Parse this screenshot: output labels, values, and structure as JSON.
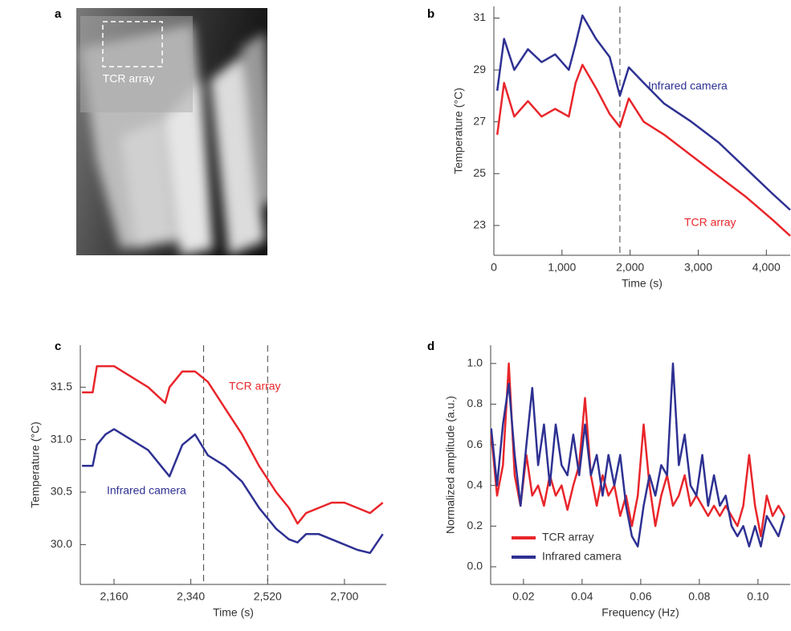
{
  "chart_data": [
    {
      "type": "image",
      "panel": "a",
      "annotation": "TCR array"
    },
    {
      "type": "line",
      "panel": "b",
      "xlabel": "Time (s)",
      "ylabel": "Temperature (°C)",
      "xlim": [
        0,
        4350
      ],
      "ylim": [
        21.85,
        31.45
      ],
      "xticks": [
        0,
        {
          "value": 1000,
          "label": "1,000"
        },
        {
          "value": 2000,
          "label": "2,000"
        },
        {
          "value": 3000,
          "label": "3,000"
        },
        {
          "value": 4000,
          "label": "4,000"
        }
      ],
      "yticks": [
        23,
        25,
        27,
        29,
        31
      ],
      "vlines": [
        1850
      ],
      "x": [
        50,
        150,
        300,
        500,
        700,
        900,
        1100,
        1200,
        1300,
        1500,
        1700,
        1850,
        1980,
        2200,
        2500,
        2900,
        3300,
        3700,
        4100,
        4350
      ],
      "series": [
        {
          "name": "Infrared camera",
          "color": "#2e3192",
          "values": [
            28.2,
            30.2,
            29,
            29.8,
            29.3,
            29.6,
            29,
            30,
            31.1,
            30.2,
            29.5,
            28,
            29.1,
            28.5,
            27.7,
            27,
            26.2,
            25.2,
            24.2,
            23.6
          ]
        },
        {
          "name": "TCR array",
          "color": "#e8262b",
          "values": [
            26.5,
            28.5,
            27.2,
            27.8,
            27.2,
            27.5,
            27.2,
            28.5,
            29.2,
            28.3,
            27.3,
            26.8,
            27.9,
            27,
            26.5,
            25.7,
            24.9,
            24.1,
            23.2,
            22.6
          ]
        }
      ]
    },
    {
      "type": "line",
      "panel": "c",
      "xlabel": "Time (s)",
      "ylabel": "Temperature (°C)",
      "xlim": [
        2081,
        2798
      ],
      "ylim": [
        29.62,
        31.9
      ],
      "xticks": [
        {
          "value": 2160,
          "label": "2,160"
        },
        {
          "value": 2340,
          "label": "2,340"
        },
        {
          "value": 2520,
          "label": "2,520"
        },
        {
          "value": 2700,
          "label": "2,700"
        }
      ],
      "yticks": [
        {
          "value": 30,
          "label": "30.0"
        },
        30.5,
        {
          "value": 31,
          "label": "31.0"
        },
        31.5
      ],
      "vlines": [
        2370,
        2520
      ],
      "x": [
        2085,
        2110,
        2120,
        2140,
        2160,
        2200,
        2240,
        2280,
        2290,
        2320,
        2350,
        2380,
        2420,
        2460,
        2500,
        2540,
        2570,
        2590,
        2610,
        2640,
        2670,
        2700,
        2730,
        2760,
        2790
      ],
      "series": [
        {
          "name": "TCR array",
          "color": "#e8262b",
          "values": [
            31.45,
            31.45,
            31.7,
            31.7,
            31.7,
            31.6,
            31.5,
            31.35,
            31.5,
            31.65,
            31.65,
            31.55,
            31.3,
            31.05,
            30.75,
            30.5,
            30.35,
            30.2,
            30.3,
            30.35,
            30.4,
            30.4,
            30.35,
            30.3,
            30.4
          ]
        },
        {
          "name": "Infrared camera",
          "color": "#2e3192",
          "values": [
            30.75,
            30.75,
            30.95,
            31.05,
            31.1,
            31.0,
            30.9,
            30.7,
            30.65,
            30.95,
            31.05,
            30.85,
            30.75,
            30.6,
            30.35,
            30.15,
            30.05,
            30.02,
            30.1,
            30.1,
            30.05,
            30.0,
            29.95,
            29.92,
            30.1
          ]
        }
      ]
    },
    {
      "type": "line",
      "panel": "d",
      "xlabel": "Frequency (Hz)",
      "ylabel": "Normalized amplitude (a.u.)",
      "xlim": [
        0.0088,
        0.111
      ],
      "ylim": [
        -0.087,
        1.09
      ],
      "xticks": [
        0.02,
        0.04,
        0.06,
        0.08,
        {
          "value": 0.1,
          "label": "0.10"
        }
      ],
      "yticks": [
        {
          "value": 0,
          "label": "0.0"
        },
        0.2,
        0.4,
        0.6,
        0.8,
        {
          "value": 1,
          "label": "1.0"
        }
      ],
      "legend": "lower left",
      "x": [
        0.009,
        0.011,
        0.013,
        0.015,
        0.017,
        0.019,
        0.021,
        0.023,
        0.025,
        0.027,
        0.029,
        0.031,
        0.033,
        0.035,
        0.037,
        0.039,
        0.041,
        0.043,
        0.045,
        0.047,
        0.049,
        0.051,
        0.053,
        0.055,
        0.057,
        0.059,
        0.061,
        0.063,
        0.065,
        0.067,
        0.069,
        0.071,
        0.073,
        0.075,
        0.077,
        0.079,
        0.081,
        0.083,
        0.085,
        0.087,
        0.089,
        0.091,
        0.093,
        0.095,
        0.097,
        0.099,
        0.101,
        0.103,
        0.105,
        0.107,
        0.109
      ],
      "series": [
        {
          "name": "TCR array",
          "color": "#e8262b",
          "values": [
            0.65,
            0.35,
            0.5,
            1.0,
            0.45,
            0.3,
            0.55,
            0.35,
            0.4,
            0.3,
            0.45,
            0.35,
            0.4,
            0.28,
            0.4,
            0.5,
            0.83,
            0.45,
            0.3,
            0.45,
            0.35,
            0.4,
            0.25,
            0.35,
            0.2,
            0.35,
            0.7,
            0.4,
            0.2,
            0.35,
            0.45,
            0.3,
            0.35,
            0.45,
            0.3,
            0.35,
            0.3,
            0.25,
            0.3,
            0.25,
            0.3,
            0.25,
            0.2,
            0.3,
            0.55,
            0.3,
            0.15,
            0.35,
            0.25,
            0.3,
            0.25
          ]
        },
        {
          "name": "Infrared camera",
          "color": "#2e3192",
          "values": [
            0.68,
            0.4,
            0.7,
            0.9,
            0.55,
            0.3,
            0.6,
            0.88,
            0.5,
            0.7,
            0.4,
            0.7,
            0.5,
            0.45,
            0.65,
            0.45,
            0.7,
            0.45,
            0.55,
            0.35,
            0.55,
            0.4,
            0.55,
            0.3,
            0.15,
            0.1,
            0.3,
            0.45,
            0.35,
            0.5,
            0.45,
            1.0,
            0.5,
            0.65,
            0.4,
            0.35,
            0.55,
            0.3,
            0.45,
            0.3,
            0.35,
            0.2,
            0.15,
            0.2,
            0.1,
            0.2,
            0.1,
            0.25,
            0.2,
            0.15,
            0.25
          ]
        }
      ]
    }
  ]
}
